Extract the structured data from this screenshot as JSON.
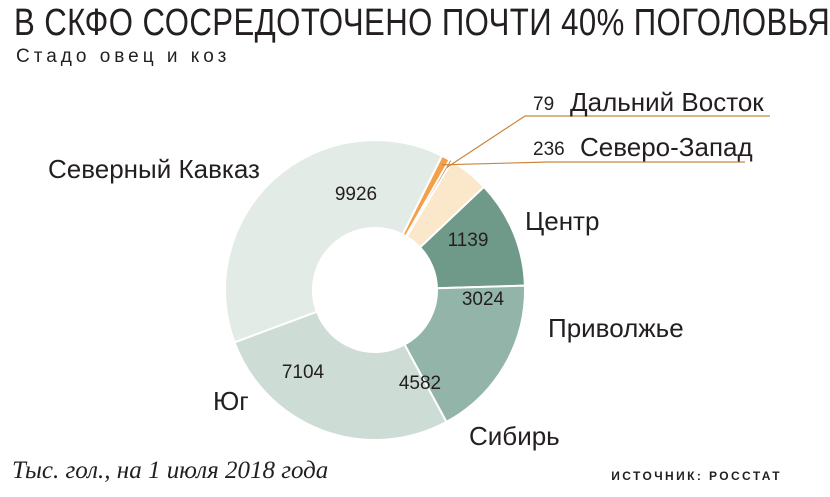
{
  "header": {
    "title": "В СКФО СОСРЕДОТОЧЕНО ПОЧТИ 40% ПОГОЛОВЬЯ",
    "subtitle": "Стадо овец и коз"
  },
  "footer": {
    "note": "Тыс. гол., на 1 июля 2018 года",
    "source": "ИСТОЧНИК: РОССТАТ"
  },
  "chart_data": {
    "type": "pie",
    "variant": "donut",
    "start_clockwise_from": "Дальний Восток",
    "slices": [
      {
        "name": "Дальний Восток",
        "value": 79,
        "color": "#b56a2a"
      },
      {
        "name": "Центр",
        "value": 1139,
        "color": "#fbe7c9"
      },
      {
        "name": "Приволжье",
        "value": 3024,
        "color": "#6f9a8a"
      },
      {
        "name": "Сибирь",
        "value": 4582,
        "color": "#93b4a8"
      },
      {
        "name": "Юг",
        "value": 7104,
        "color": "#cddcd4"
      },
      {
        "name": "Северный Кавказ",
        "value": 9926,
        "color": "#e3ebe6"
      },
      {
        "name": "Северо-Запад",
        "value": 236,
        "color": "#f2a04a"
      }
    ]
  }
}
